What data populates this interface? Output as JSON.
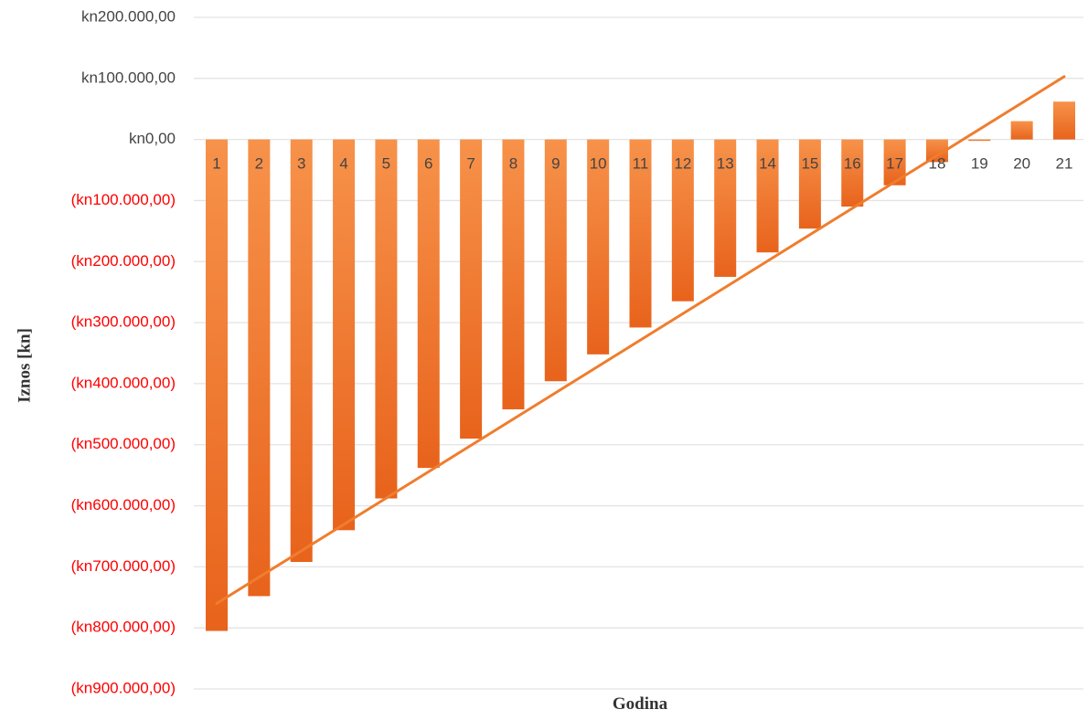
{
  "chart_data": {
    "type": "bar",
    "categories": [
      "1",
      "2",
      "3",
      "4",
      "5",
      "6",
      "7",
      "8",
      "9",
      "10",
      "11",
      "12",
      "13",
      "14",
      "15",
      "16",
      "17",
      "18",
      "19",
      "20",
      "21"
    ],
    "series": [
      {
        "values": [
          -805000,
          -748000,
          -692000,
          -640000,
          -588000,
          -538000,
          -490000,
          -442000,
          -396000,
          -352000,
          -308000,
          -265000,
          -225000,
          -185000,
          -146000,
          -110000,
          -75000,
          -37000,
          -2000,
          30000,
          62000
        ]
      }
    ],
    "trendline": {
      "type": "linear",
      "start": [
        1,
        -760000
      ],
      "end": [
        21,
        103000
      ]
    },
    "xlabel": "Godina",
    "ylabel": "Iznos [kn]",
    "ylim": [
      -900000,
      200000
    ],
    "yticks": [
      {
        "value": 200000,
        "label": "kn200.000,00"
      },
      {
        "value": 100000,
        "label": "kn100.000,00"
      },
      {
        "value": 0,
        "label": "kn0,00"
      },
      {
        "value": -100000,
        "label": "(kn100.000,00)"
      },
      {
        "value": -200000,
        "label": "(kn200.000,00)"
      },
      {
        "value": -300000,
        "label": "(kn300.000,00)"
      },
      {
        "value": -400000,
        "label": "(kn400.000,00)"
      },
      {
        "value": -500000,
        "label": "(kn500.000,00)"
      },
      {
        "value": -600000,
        "label": "(kn600.000,00)"
      },
      {
        "value": -700000,
        "label": "(kn700.000,00)"
      },
      {
        "value": -800000,
        "label": "(kn800.000,00)"
      },
      {
        "value": -900000,
        "label": "(kn900.000,00)"
      }
    ],
    "grid": true,
    "legend": "none",
    "colors": {
      "bar_light": "#f7924a",
      "bar_dark": "#e8631c",
      "trendline": "#ef7d2e",
      "positive_tick": "#444444",
      "negative_tick": "#ff0000"
    }
  }
}
